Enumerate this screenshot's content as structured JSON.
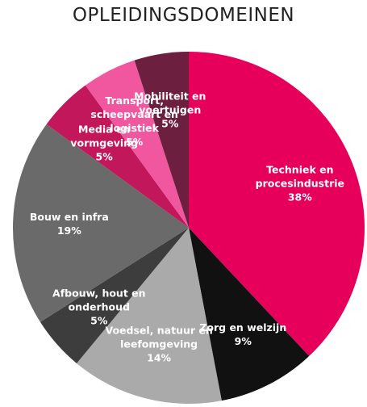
{
  "chart_data": {
    "type": "pie",
    "title": "OPLEIDINGSDOMEINEN",
    "categories": [
      "Techniek en procesindustrie",
      "Zorg en welzijn",
      "Voedsel, natuur en leefomgeving",
      "Afbouw, hout en onderhoud",
      "Bouw en infra",
      "Media en vormgeving",
      "Transport, scheepvaart en logistiek",
      "Mobiliteit en voertuigen"
    ],
    "values": [
      38,
      9,
      14,
      5,
      19,
      5,
      5,
      5
    ],
    "value_labels": [
      "38%",
      "9%",
      "14%",
      "5%",
      "19%",
      "5%",
      "5%",
      "5%"
    ],
    "colors": [
      "#e6005c",
      "#111111",
      "#aaaaaa",
      "#3d3d3d",
      "#6a6a6a",
      "#c2185b",
      "#f0579e",
      "#6d1f3f"
    ]
  }
}
